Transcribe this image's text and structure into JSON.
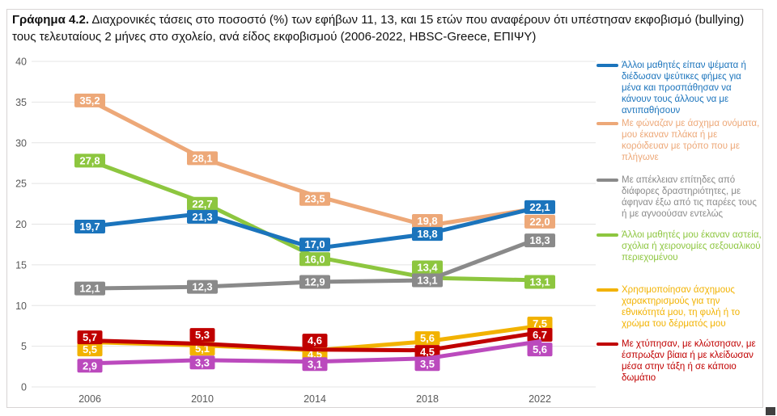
{
  "title": {
    "prefix": "Γράφημα 4.2.",
    "rest": " Διαχρονικές τάσεις στο ποσοστό (%) των εφήβων 11, 13, και 15 ετών που αναφέρουν ότι υπέστησαν εκφοβισμό (bullying) τους τελευταίους 2 μήνες στο σχολείο, ανά είδος εκφοβισμού (2006-2022, HBSC-Greece, ΕΠΙΨΥ)"
  },
  "chart_data": {
    "type": "line",
    "title": "Γράφημα 4.2. Διαχρονικές τάσεις στο ποσοστό (%) των εφήβων 11, 13, και 15 ετών που αναφέρουν ότι υπέστησαν εκφοβισμό (bullying) τους τελευταίους 2 μήνες στο σχολείο, ανά είδος εκφοβισμού (2006-2022, HBSC-Greece, ΕΠΙΨΥ)",
    "x": [
      2006,
      2010,
      2014,
      2018,
      2022
    ],
    "ylim": [
      0,
      40
    ],
    "yticks": [
      0,
      5,
      10,
      15,
      20,
      25,
      30,
      35,
      40
    ],
    "grid": true,
    "legend_position": "right",
    "decimal_separator": ",",
    "value_labels": true,
    "draw_order": [
      1,
      3,
      2,
      0,
      4,
      5,
      6
    ],
    "series": [
      {
        "name": "Άλλοι μαθητές είπαν ψέματα ή διέδωσαν ψεύτικες φήμες για μένα και προσπάθησαν να κάνουν τους άλλους να με αντιπαθήσουν",
        "color": "#1b74bc",
        "values": [
          19.7,
          21.3,
          17.0,
          18.8,
          22.1
        ],
        "label_dy": [
          0,
          4,
          -5,
          0,
          0
        ],
        "in_legend": true
      },
      {
        "name": "Με φώναζαν με άσχημα ονόματα, μου έκαναν πλάκα ή με κορόιδευαν με τρόπο που με πλήγωνε",
        "color": "#eda878",
        "values": [
          35.2,
          28.1,
          23.5,
          19.8,
          22.0
        ],
        "label_dy": [
          0,
          0,
          4,
          -6,
          17
        ],
        "in_legend": true
      },
      {
        "name": "Με απέκλειαν επίτηδες από διάφορες δραστηριότητες, με άφηναν έξω από τις παρέες τους ή με αγνοούσαν εντελώς",
        "color": "#8a8a8a",
        "values": [
          12.1,
          12.3,
          12.9,
          13.1,
          18.3
        ],
        "label_dy": [
          0,
          0,
          0,
          0,
          3
        ],
        "in_legend": true
      },
      {
        "name": "Άλλοι μαθητές μου έκαναν αστεία, σχόλια ή χειρονομίες σεξουαλικού περιεχομένου",
        "color": "#8dc63f",
        "values": [
          27.8,
          22.7,
          16.0,
          13.4,
          13.1
        ],
        "label_dy": [
          0,
          2,
          3,
          -13,
          2
        ],
        "in_legend": true
      },
      {
        "name": "Χρησιμοποίησαν άσχημους χαρακτηρισμούς για την εθνικότητά μου, τη φυλή ή το χρώμα του δέρματός μου",
        "color": "#f2b200",
        "values": [
          5.5,
          5.1,
          4.5,
          5.6,
          7.5
        ],
        "label_dy": [
          9,
          4,
          5,
          -4,
          -3
        ],
        "in_legend": true
      },
      {
        "name": "Με χτύπησαν, με κλώτσησαν, με έσπρωξαν βίαια ή με κλείδωσαν μέσα στην τάξη ή σε κάποιο δωμάτιο",
        "color": "#c00000",
        "values": [
          5.7,
          5.3,
          4.6,
          4.5,
          6.7
        ],
        "label_dy": [
          -4,
          -11,
          -11,
          2,
          3
        ],
        "in_legend": true
      },
      {
        "name": "",
        "color": "#bb4abd",
        "values": [
          2.9,
          3.3,
          3.1,
          3.5,
          5.6
        ],
        "label_dy": [
          3,
          3,
          3,
          7,
          10
        ],
        "in_legend": false
      }
    ]
  }
}
